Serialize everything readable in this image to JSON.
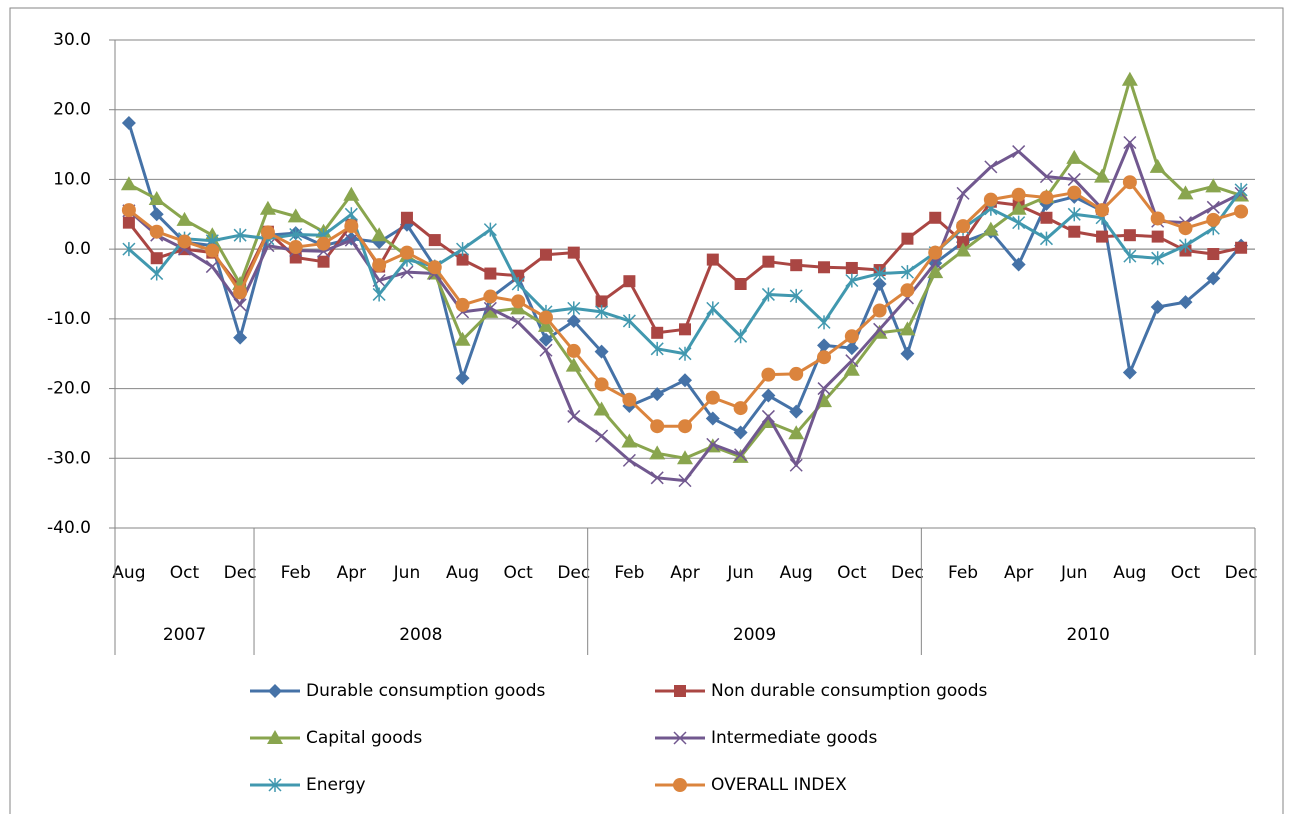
{
  "chart_data": {
    "type": "line",
    "categories": [
      "Aug",
      null,
      "Oct",
      null,
      "Dec",
      null,
      "Feb",
      null,
      "Apr",
      null,
      "Jun",
      null,
      "Aug",
      null,
      "Oct",
      null,
      "Dec",
      null,
      "Feb",
      null,
      "Apr",
      null,
      "Jun",
      null,
      "Aug",
      null,
      "Oct",
      null,
      "Dec",
      null,
      "Feb",
      null,
      "Apr",
      null,
      "Jun",
      null,
      "Aug",
      null,
      "Oct",
      null,
      "Dec"
    ],
    "x_groups": [
      {
        "label": "2007",
        "categories": 5
      },
      {
        "label": "2008",
        "categories": 12
      },
      {
        "label": "2009",
        "categories": 12
      },
      {
        "label": "2010",
        "categories": 12
      }
    ],
    "ylim": [
      -40,
      30
    ],
    "yticks": [
      {
        "value": -40,
        "label": "-40.0"
      },
      {
        "value": -30,
        "label": "-30.0"
      },
      {
        "value": -20,
        "label": "-20.0"
      },
      {
        "value": -10,
        "label": "-10.0"
      },
      {
        "value": 0,
        "label": "0.0"
      },
      {
        "value": 10,
        "label": "10.0"
      },
      {
        "value": 20,
        "label": "20.0"
      },
      {
        "value": 30,
        "label": "30.0"
      }
    ],
    "grid": true,
    "legend": "bottom",
    "series": [
      {
        "name": "Durable consumption goods",
        "color": "#4572a7",
        "marker": "diamond",
        "values": [
          18.1,
          5.0,
          1.0,
          0.5,
          -12.7,
          2.0,
          2.3,
          0.5,
          1.5,
          1.0,
          3.5,
          -2.5,
          -18.5,
          -7,
          -4,
          -13,
          -10.3,
          -14.7,
          -22.5,
          -20.8,
          -18.8,
          -24.3,
          -26.3,
          -21,
          -23.3,
          -13.8,
          -14.2,
          -5,
          -15,
          -2,
          1,
          2.5,
          -2.2,
          6.5,
          7.5,
          5.5,
          -17.7,
          -8.3,
          -7.6,
          -4.2,
          0.5
        ]
      },
      {
        "name": "Non durable consumption goods",
        "color": "#aa4643",
        "marker": "square",
        "values": [
          3.8,
          -1.3,
          0,
          -0.5,
          -5.5,
          2.5,
          -1.2,
          -1.8,
          3.5,
          -2.5,
          4.5,
          1.3,
          -1.5,
          -3.5,
          -3.8,
          -0.8,
          -0.5,
          -7.5,
          -4.6,
          -12,
          -11.5,
          -1.5,
          -5,
          -1.8,
          -2.3,
          -2.6,
          -2.7,
          -3,
          1.5,
          4.5,
          1,
          6.8,
          6.3,
          4.5,
          2.5,
          1.8,
          2.0,
          1.8,
          -0.2,
          -0.7,
          0.2
        ]
      },
      {
        "name": "Capital goods",
        "color": "#89a54e",
        "marker": "triangle",
        "values": [
          9.3,
          7.2,
          4.2,
          2.0,
          -5,
          5.8,
          4.7,
          2.5,
          7.8,
          2.0,
          -1.0,
          -3.5,
          -13,
          -9,
          -8.5,
          -11,
          -16.7,
          -23,
          -27.6,
          -29.3,
          -30,
          -28.3,
          -29.8,
          -24.8,
          -26.4,
          -21.8,
          -17.3,
          -12,
          -11.5,
          -3.3,
          -0.2,
          2.8,
          5.8,
          7.5,
          13.1,
          10.4,
          24.3,
          11.8,
          8,
          9.0,
          7.7
        ]
      },
      {
        "name": "Intermediate goods",
        "color": "#71588f",
        "marker": "x",
        "values": [
          5.5,
          2,
          0,
          -2.5,
          -8,
          0.5,
          -0.2,
          -0.3,
          1.3,
          -4.5,
          -3.3,
          -3.5,
          -9,
          -8.5,
          -10.5,
          -14.5,
          -24,
          -26.8,
          -30.3,
          -32.8,
          -33.2,
          -28,
          -29.5,
          -24,
          -31,
          -20,
          -16,
          -11.5,
          -7,
          -2,
          8,
          11.8,
          14,
          10.4,
          10,
          5.8,
          15.3,
          4,
          3.8,
          6,
          8
        ]
      },
      {
        "name": "Energy",
        "color": "#4198af",
        "marker": "star",
        "values": [
          0,
          -3.5,
          1.5,
          1.2,
          2.0,
          1.5,
          2.1,
          2,
          5.0,
          -6.5,
          -1.5,
          -2.5,
          0,
          2.8,
          -5,
          -9,
          -8.5,
          -9,
          -10.3,
          -14.3,
          -15,
          -8.5,
          -12.5,
          -6.5,
          -6.7,
          -10.5,
          -4.5,
          -3.5,
          -3.3,
          -0.5,
          3,
          5.8,
          3.8,
          1.5,
          5,
          4.5,
          -1,
          -1.3,
          0.5,
          3,
          8.5
        ]
      },
      {
        "name": "OVERALL INDEX",
        "color": "#db843d",
        "marker": "circle",
        "values": [
          5.6,
          2.5,
          1.1,
          -0.2,
          -6.2,
          2.4,
          0.3,
          0.8,
          3.3,
          -2.3,
          -0.5,
          -2.6,
          -8,
          -6.8,
          -7.5,
          -9.8,
          -14.6,
          -19.4,
          -21.6,
          -25.4,
          -25.4,
          -21.3,
          -22.8,
          -18,
          -17.9,
          -15.5,
          -12.5,
          -8.8,
          -5.9,
          -0.5,
          3.3,
          7.1,
          7.8,
          7.4,
          8.1,
          5.6,
          9.6,
          4.4,
          3.0,
          4.2,
          5.4
        ]
      }
    ]
  }
}
